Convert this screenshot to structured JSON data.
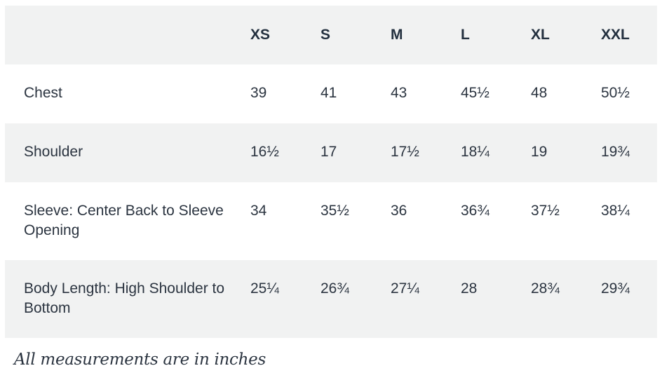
{
  "table": {
    "corner_label": "",
    "sizes": [
      "XS",
      "S",
      "M",
      "L",
      "XL",
      "XXL"
    ],
    "rows": [
      {
        "label": "Chest",
        "values": [
          "39",
          "41",
          "43",
          "45½",
          "48",
          "50½"
        ]
      },
      {
        "label": "Shoulder",
        "values": [
          "16½",
          "17",
          "17½",
          "18¼",
          "19",
          "19¾"
        ]
      },
      {
        "label": "Sleeve: Center Back to Sleeve Opening",
        "values": [
          "34",
          "35½",
          "36",
          "36¾",
          "37½",
          "38¼"
        ]
      },
      {
        "label": "Body Length: High Shoulder to Bottom",
        "values": [
          "25¼",
          "26¾",
          "27¼",
          "28",
          "28¾",
          "29¾"
        ]
      }
    ]
  },
  "footnote": "All measurements are in inches",
  "colors": {
    "shaded_row": "#f1f2f2",
    "text": "#2b3440"
  }
}
